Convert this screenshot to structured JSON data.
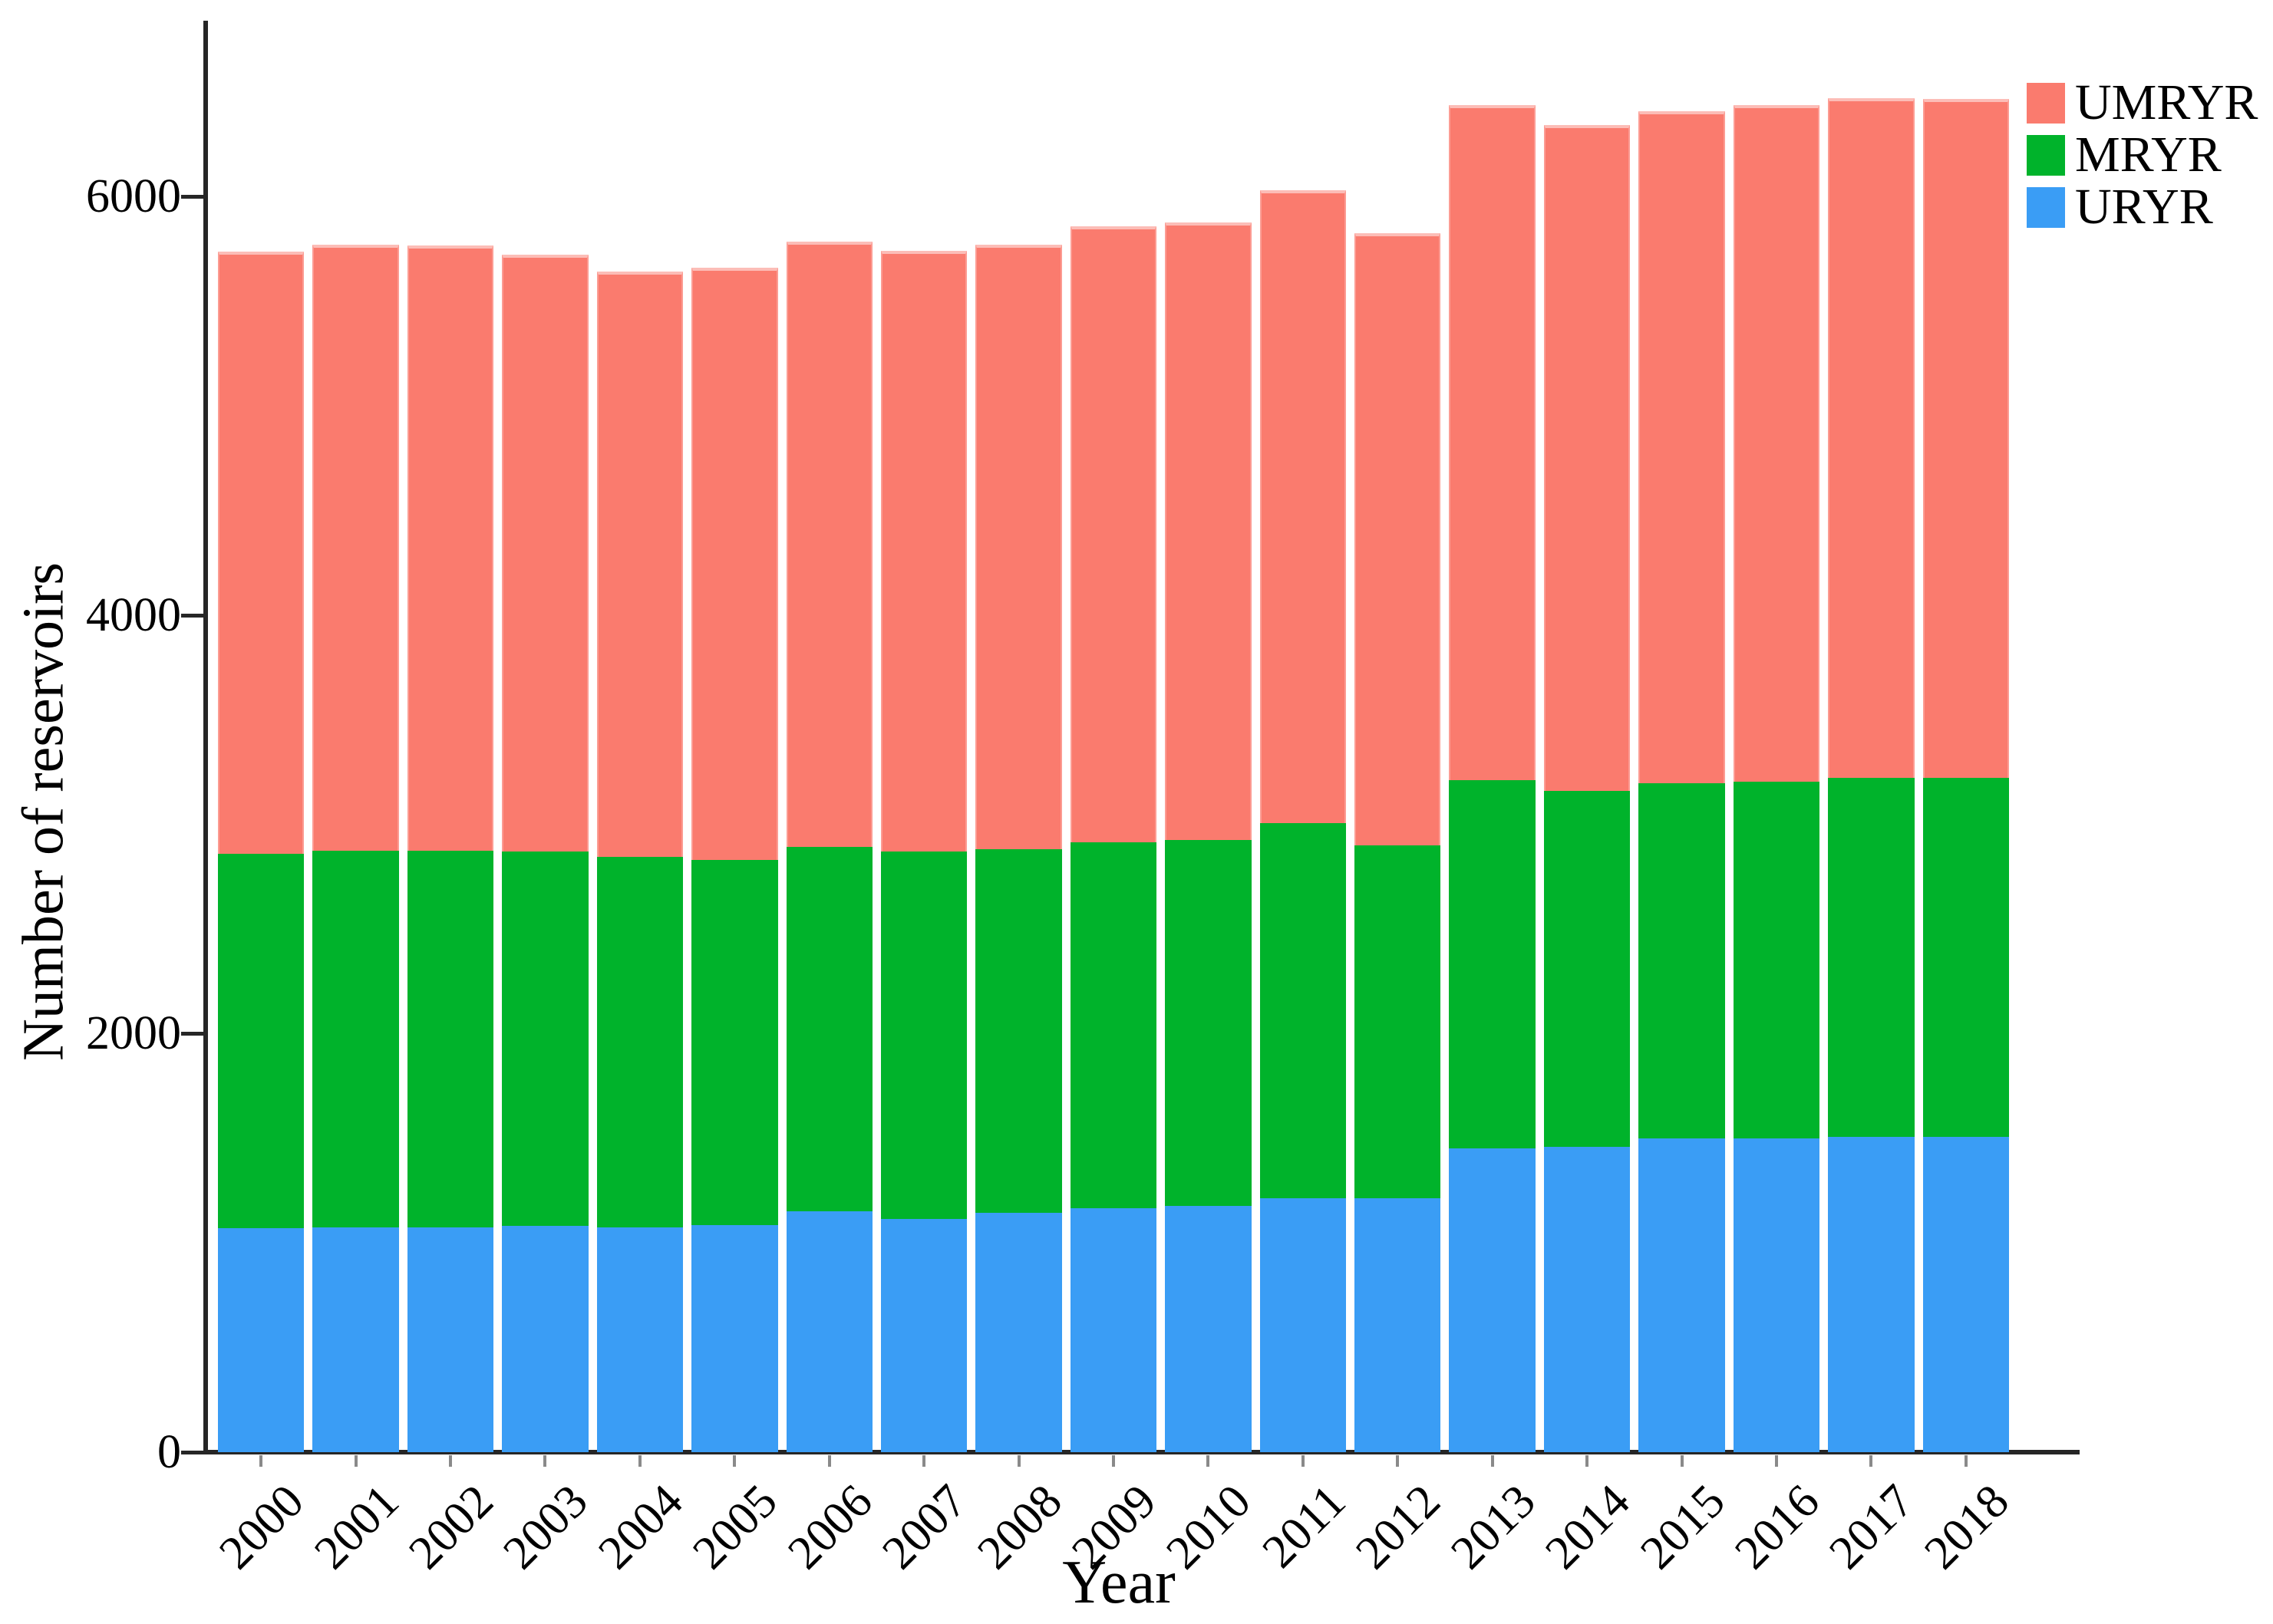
{
  "figure": {
    "background": "#ffffff",
    "axis_color": "#262626",
    "x_tick_color": "#8a8a8a",
    "text_color": "#000000"
  },
  "chart_data": {
    "type": "bar",
    "stacked": true,
    "title": "",
    "xlabel": "Year",
    "ylabel": "Number of reservoirs",
    "categories": [
      "2000",
      "2001",
      "2002",
      "2003",
      "2004",
      "2005",
      "2006",
      "2007",
      "2008",
      "2009",
      "2010",
      "2011",
      "2012",
      "2013",
      "2014",
      "2015",
      "2016",
      "2017",
      "2018"
    ],
    "series": [
      {
        "name": "URYR",
        "color": "#3A9DF5",
        "values": [
          1070,
          1075,
          1075,
          1080,
          1075,
          1085,
          1150,
          1115,
          1145,
          1165,
          1175,
          1215,
          1215,
          1450,
          1460,
          1500,
          1500,
          1505,
          1505
        ]
      },
      {
        "name": "MRYR",
        "color": "#00B32B",
        "values": [
          1790,
          1800,
          1800,
          1790,
          1770,
          1745,
          1740,
          1755,
          1735,
          1750,
          1750,
          1790,
          1685,
          1760,
          1700,
          1695,
          1705,
          1715,
          1715
        ]
      },
      {
        "name": "UMRYR",
        "color": "#FA7B6E",
        "values": [
          2875,
          2895,
          2890,
          2850,
          2795,
          2830,
          2895,
          2870,
          2890,
          2940,
          2950,
          3025,
          2925,
          3225,
          3180,
          3210,
          3230,
          3250,
          3245
        ]
      }
    ],
    "totals": [
      5735,
      5770,
      5765,
      5720,
      5640,
      5660,
      5785,
      5740,
      5770,
      5855,
      5875,
      6030,
      5825,
      6435,
      6340,
      6405,
      6435,
      6470,
      6465
    ],
    "y_ticks": [
      "0",
      "2000",
      "4000",
      "6000"
    ],
    "ylim": [
      0,
      6670
    ],
    "grid": false,
    "legend_position": "top-right",
    "legend_order": [
      "UMRYR",
      "MRYR",
      "URYR"
    ]
  }
}
